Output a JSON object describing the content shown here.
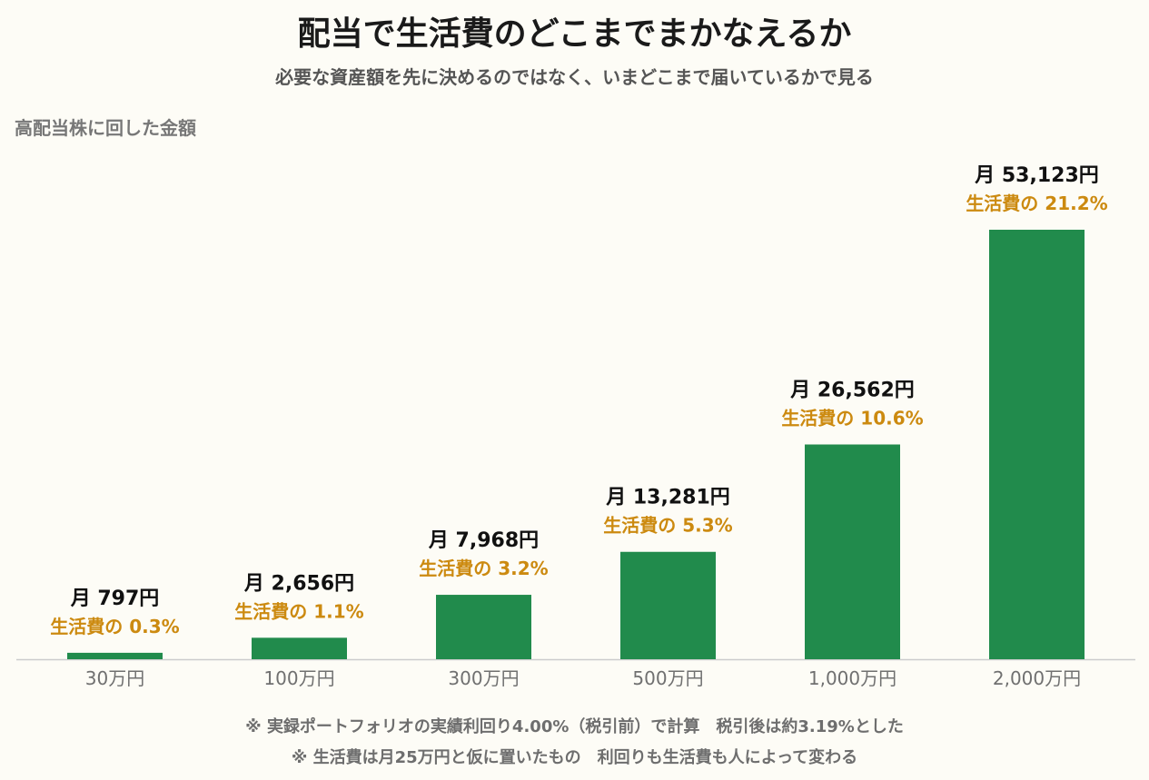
{
  "header": {
    "title": "配当で生活費のどこまでまかなえるか",
    "subtitle": "必要な資産額を先に決めるのではなく、いまどこまで届いているかで見る"
  },
  "notes": [
    "※ 実録ポートフォリオの実績利回り4.00%（税引前）で計算　税引後は約3.19%とした",
    "※ 生活費は月25万円と仮に置いたもの　利回りも生活費も人によって変わる"
  ],
  "chart_data": {
    "type": "bar",
    "xlabel": "高配当株に回した金額",
    "ylabel": "",
    "categories": [
      "30万円",
      "100万円",
      "300万円",
      "500万円",
      "1,000万円",
      "2,000万円"
    ],
    "values": [
      797,
      2656,
      7968,
      13281,
      26562,
      53123
    ],
    "value_labels": [
      "月 797円",
      "月 2,656円",
      "月 7,968円",
      "月 13,281円",
      "月 26,562円",
      "月 53,123円"
    ],
    "percent_labels": [
      "生活費の 0.3%",
      "生活費の 1.1%",
      "生活費の 3.2%",
      "生活費の 5.3%",
      "生活費の 10.6%",
      "生活費の 21.2%"
    ],
    "ylim": [
      0,
      53123
    ],
    "grid": false,
    "colors": {
      "bar": "#218b4c",
      "percent_label": "#cc8a10",
      "baseline": "#cccccc"
    }
  }
}
